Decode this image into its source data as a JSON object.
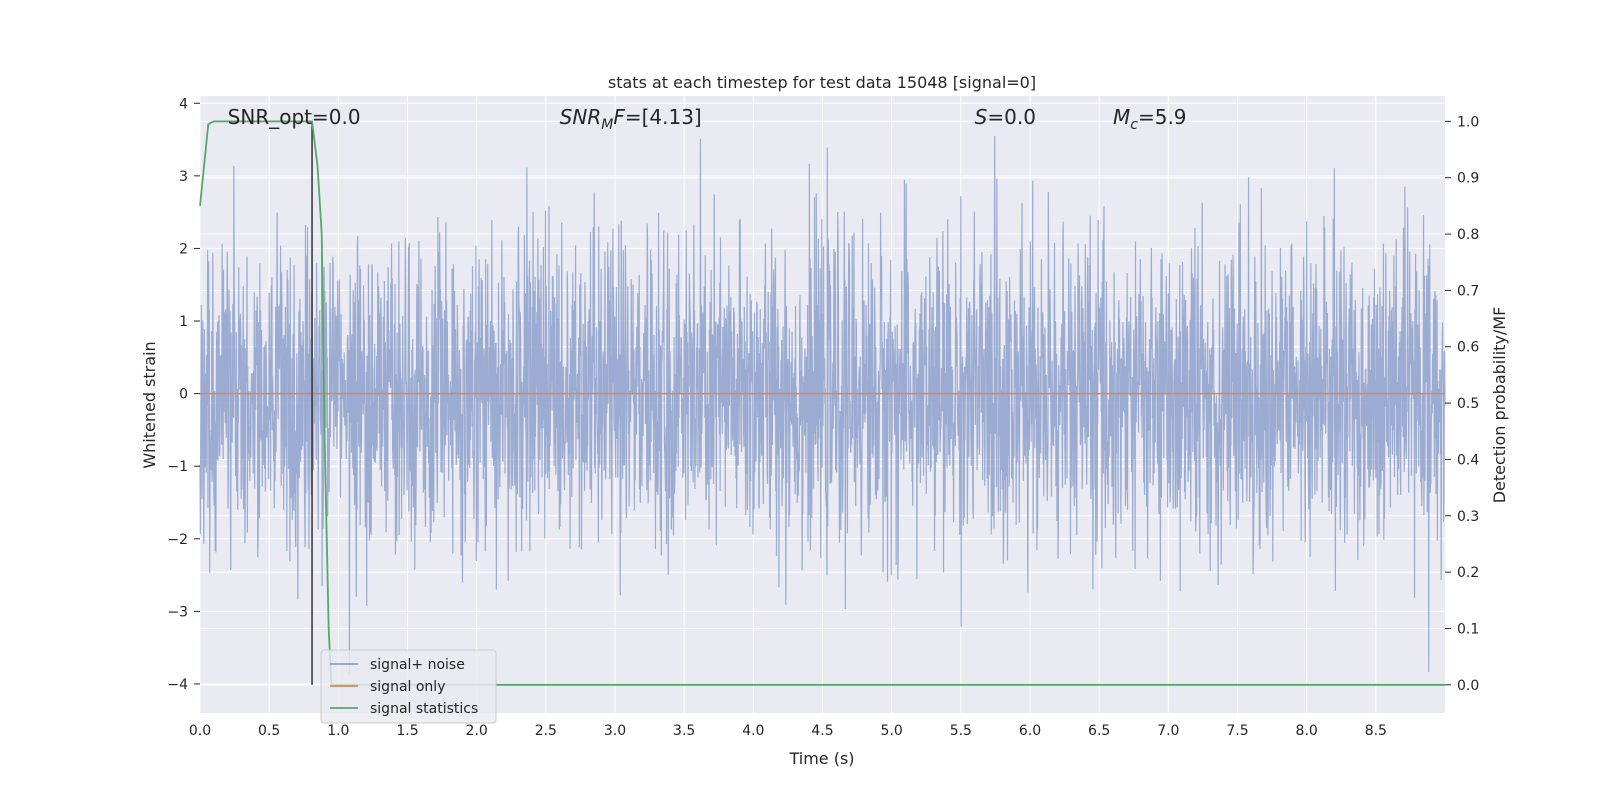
{
  "chart_data": {
    "type": "line",
    "title": "stats at each timestep for test data 15048 [signal=0]",
    "xlabel": "Time (s)",
    "ylabel_left": "Whitened strain",
    "ylabel_right": "Detection probability/MF",
    "xlim": [
      0.0,
      9.0
    ],
    "ylim_left": [
      -4.4,
      4.1
    ],
    "ylim_right": [
      -0.05,
      1.045
    ],
    "x_ticks": [
      "0.0",
      "0.5",
      "1.0",
      "1.5",
      "2.0",
      "2.5",
      "3.0",
      "3.5",
      "4.0",
      "4.5",
      "5.0",
      "5.5",
      "6.0",
      "6.5",
      "7.0",
      "7.5",
      "8.0",
      "8.5"
    ],
    "y_ticks_left": [
      "4",
      "3",
      "2",
      "1",
      "0",
      "−1",
      "−2",
      "−3",
      "−4"
    ],
    "y_ticks_right": [
      "1.0",
      "0.9",
      "0.8",
      "0.7",
      "0.6",
      "0.5",
      "0.4",
      "0.3",
      "0.2",
      "0.1",
      "0.0"
    ],
    "grid": true,
    "legend_position": "lower-left",
    "annotations": [
      {
        "text": "SNR_opt=0.0",
        "x": 0.2
      },
      {
        "text": "SNR_MF=[4.13]",
        "x": 2.6
      },
      {
        "text": "S=0.0",
        "x": 5.6
      },
      {
        "text": "M_c=5.9",
        "x": 6.6
      }
    ],
    "vline_x": 0.81,
    "series": [
      {
        "name": "signal+ noise",
        "color": "#8da0cb",
        "axis": "left",
        "description_kind": "noise",
        "amplitude_band": [
          -1.7,
          1.7
        ],
        "extremes": [
          -4.0,
          3.72
        ]
      },
      {
        "name": "signal only",
        "color": "#dd8452",
        "axis": "left",
        "x": [
          0.0,
          9.0
        ],
        "y": [
          0.0,
          0.0
        ]
      },
      {
        "name": "signal statistics",
        "color": "#55a868",
        "axis": "right",
        "x": [
          0.0,
          0.06,
          0.1,
          0.2,
          0.3,
          0.5,
          0.7,
          0.81,
          0.85,
          0.88,
          0.9,
          0.93,
          0.95,
          1.0,
          9.0
        ],
        "y": [
          0.85,
          0.995,
          1.0,
          1.0,
          1.0,
          1.0,
          1.0,
          1.0,
          0.92,
          0.8,
          0.45,
          0.1,
          0.0,
          0.0,
          0.0
        ]
      }
    ]
  }
}
